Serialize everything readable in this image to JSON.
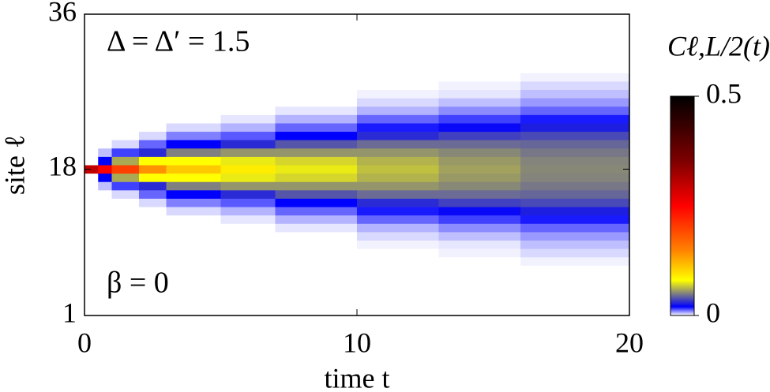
{
  "chart_data": {
    "type": "heatmap",
    "annotations": [
      "Δ = Δ′ = 1.5",
      "β = 0"
    ],
    "xlabel": "time t",
    "ylabel": "site ℓ",
    "colorbar_label": "Cℓ,L/2(t)",
    "xbins": [
      0,
      0.5,
      1,
      2,
      3,
      5,
      7,
      10,
      13,
      16,
      20
    ],
    "sites": [
      1,
      2,
      3,
      4,
      5,
      6,
      7,
      8,
      9,
      10,
      11,
      12,
      13,
      14,
      15,
      16,
      17,
      18,
      19,
      20,
      21,
      22,
      23,
      24,
      25,
      26,
      27,
      28,
      29,
      30,
      31,
      32,
      33,
      34,
      35,
      36
    ],
    "z": [
      [
        0,
        0,
        0,
        0,
        0,
        0,
        0,
        0,
        0,
        0,
        0,
        0,
        0,
        0,
        0,
        0,
        0,
        0.3,
        0,
        0,
        0,
        0,
        0,
        0,
        0,
        0,
        0,
        0,
        0,
        0,
        0,
        0,
        0,
        0,
        0,
        0
      ],
      [
        0,
        0,
        0,
        0,
        0,
        0,
        0,
        0,
        0,
        0,
        0,
        0,
        0,
        0,
        0,
        0.005,
        0.02,
        0.25,
        0.02,
        0.005,
        0,
        0,
        0,
        0,
        0,
        0,
        0,
        0,
        0,
        0,
        0,
        0,
        0,
        0,
        0,
        0
      ],
      [
        0,
        0,
        0,
        0,
        0,
        0,
        0,
        0,
        0,
        0,
        0,
        0,
        0,
        0,
        0.003,
        0.015,
        0.06,
        0.2,
        0.06,
        0.015,
        0.003,
        0,
        0,
        0,
        0,
        0,
        0,
        0,
        0,
        0,
        0,
        0,
        0,
        0,
        0,
        0
      ],
      [
        0,
        0,
        0,
        0,
        0,
        0,
        0,
        0,
        0,
        0,
        0,
        0,
        0,
        0.003,
        0.012,
        0.03,
        0.08,
        0.14,
        0.08,
        0.03,
        0.012,
        0.003,
        0,
        0,
        0,
        0,
        0,
        0,
        0,
        0,
        0,
        0,
        0,
        0,
        0,
        0
      ],
      [
        0,
        0,
        0,
        0,
        0,
        0,
        0,
        0,
        0,
        0,
        0,
        0,
        0.003,
        0.01,
        0.02,
        0.05,
        0.08,
        0.11,
        0.08,
        0.05,
        0.02,
        0.01,
        0.003,
        0,
        0,
        0,
        0,
        0,
        0,
        0,
        0,
        0,
        0,
        0,
        0,
        0
      ],
      [
        0,
        0,
        0,
        0,
        0,
        0,
        0,
        0,
        0,
        0,
        0,
        0.002,
        0.006,
        0.013,
        0.03,
        0.055,
        0.075,
        0.09,
        0.075,
        0.055,
        0.03,
        0.013,
        0.006,
        0.002,
        0,
        0,
        0,
        0,
        0,
        0,
        0,
        0,
        0,
        0,
        0,
        0
      ],
      [
        0,
        0,
        0,
        0,
        0,
        0,
        0,
        0,
        0,
        0,
        0.002,
        0.006,
        0.012,
        0.02,
        0.04,
        0.055,
        0.07,
        0.075,
        0.07,
        0.055,
        0.04,
        0.02,
        0.012,
        0.006,
        0.002,
        0,
        0,
        0,
        0,
        0,
        0,
        0,
        0,
        0,
        0,
        0
      ],
      [
        0,
        0,
        0,
        0,
        0,
        0,
        0,
        0,
        0.001,
        0.003,
        0.006,
        0.012,
        0.018,
        0.03,
        0.045,
        0.055,
        0.062,
        0.065,
        0.062,
        0.055,
        0.045,
        0.03,
        0.018,
        0.012,
        0.006,
        0.003,
        0.001,
        0,
        0,
        0,
        0,
        0,
        0,
        0,
        0,
        0
      ],
      [
        0,
        0,
        0,
        0,
        0,
        0,
        0,
        0.001,
        0.002,
        0.005,
        0.009,
        0.015,
        0.022,
        0.035,
        0.045,
        0.052,
        0.056,
        0.058,
        0.056,
        0.052,
        0.045,
        0.035,
        0.022,
        0.015,
        0.009,
        0.005,
        0.002,
        0.001,
        0,
        0,
        0,
        0,
        0,
        0,
        0,
        0
      ],
      [
        0,
        0,
        0,
        0,
        0,
        0,
        0.001,
        0.003,
        0.005,
        0.008,
        0.012,
        0.018,
        0.027,
        0.037,
        0.044,
        0.048,
        0.051,
        0.052,
        0.051,
        0.048,
        0.044,
        0.037,
        0.027,
        0.018,
        0.012,
        0.008,
        0.005,
        0.003,
        0.001,
        0,
        0,
        0,
        0,
        0,
        0,
        0
      ]
    ],
    "xlim": [
      0,
      20
    ],
    "xticks": [
      0,
      10,
      20
    ],
    "ylim": [
      1,
      36
    ],
    "yticks": [
      1,
      18,
      36
    ],
    "clim": [
      0,
      0.5
    ],
    "cticks": [
      0,
      0.5
    ],
    "colorscale": [
      [
        0,
        "#ffffff"
      ],
      [
        0.02,
        "#0000ff"
      ],
      [
        0.05,
        "#808080"
      ],
      [
        0.08,
        "#ffff00"
      ],
      [
        0.15,
        "#ff8000"
      ],
      [
        0.25,
        "#ff0000"
      ],
      [
        0.35,
        "#800000"
      ],
      [
        0.5,
        "#000000"
      ]
    ]
  }
}
